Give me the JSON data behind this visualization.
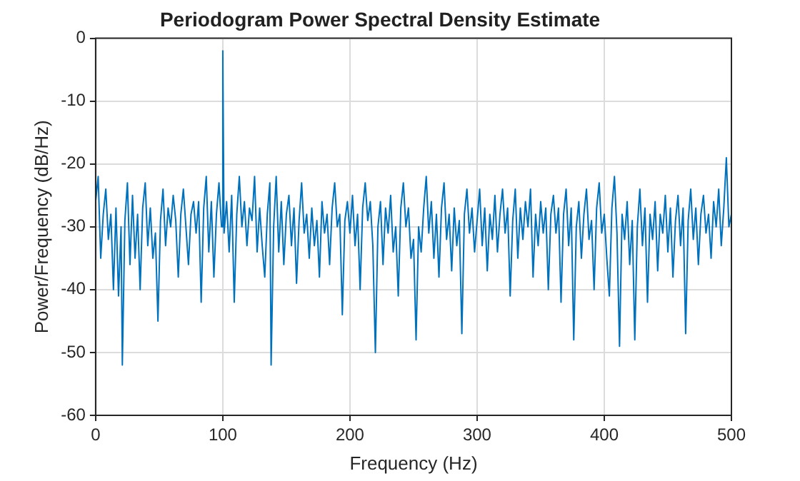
{
  "chart_data": {
    "type": "line",
    "title": "Periodogram Power Spectral Density Estimate",
    "xlabel": "Frequency (Hz)",
    "ylabel": "Power/Frequency (dB/Hz)",
    "xlim": [
      0,
      500
    ],
    "xticks": [
      0,
      100,
      200,
      300,
      400,
      500
    ],
    "ylim": [
      -60,
      0
    ],
    "yticks": [
      -60,
      -50,
      -40,
      -30,
      -20,
      -10,
      0
    ],
    "grid": true,
    "legend": false,
    "marker": "none",
    "line_style": "solid",
    "series": [
      {
        "color": "#0072bd",
        "x": [
          0,
          2,
          4,
          6,
          8,
          10,
          12,
          14,
          16,
          18,
          20,
          21,
          23,
          25,
          27,
          29,
          31,
          33,
          35,
          37,
          39,
          41,
          43,
          45,
          47,
          49,
          51,
          53,
          55,
          57,
          59,
          61,
          63,
          65,
          67,
          69,
          71,
          73,
          75,
          77,
          79,
          81,
          83,
          85,
          87,
          89,
          91,
          93,
          95,
          97,
          99,
          100,
          101,
          103,
          105,
          107,
          109,
          111,
          113,
          115,
          117,
          119,
          121,
          123,
          125,
          127,
          129,
          131,
          133,
          135,
          137,
          138,
          140,
          142,
          144,
          146,
          148,
          150,
          152,
          154,
          156,
          158,
          160,
          162,
          164,
          166,
          168,
          170,
          172,
          174,
          176,
          178,
          180,
          182,
          184,
          186,
          188,
          190,
          192,
          194,
          196,
          198,
          200,
          202,
          204,
          206,
          208,
          210,
          212,
          214,
          216,
          218,
          220,
          222,
          224,
          226,
          228,
          230,
          232,
          234,
          236,
          238,
          240,
          242,
          244,
          246,
          248,
          250,
          252,
          254,
          256,
          258,
          260,
          262,
          264,
          266,
          268,
          270,
          272,
          274,
          276,
          278,
          280,
          282,
          284,
          286,
          288,
          290,
          292,
          294,
          296,
          298,
          300,
          302,
          304,
          306,
          308,
          310,
          312,
          314,
          316,
          318,
          320,
          322,
          324,
          326,
          328,
          330,
          332,
          334,
          336,
          338,
          340,
          342,
          344,
          346,
          348,
          350,
          352,
          354,
          356,
          358,
          360,
          362,
          364,
          366,
          368,
          370,
          372,
          374,
          376,
          378,
          380,
          382,
          384,
          386,
          388,
          390,
          392,
          394,
          396,
          398,
          400,
          402,
          404,
          406,
          408,
          410,
          412,
          414,
          416,
          418,
          420,
          422,
          424,
          426,
          428,
          430,
          432,
          434,
          436,
          438,
          440,
          442,
          444,
          446,
          448,
          450,
          452,
          454,
          456,
          458,
          460,
          462,
          464,
          466,
          468,
          470,
          472,
          474,
          476,
          478,
          480,
          482,
          484,
          486,
          488,
          490,
          492,
          494,
          496,
          498,
          500
        ],
        "values": [
          -26,
          -22,
          -35,
          -28,
          -24,
          -32,
          -28,
          -40,
          -27,
          -41,
          -30,
          -52,
          -29,
          -23,
          -36,
          -25,
          -35,
          -28,
          -40,
          -27,
          -23,
          -33,
          -27,
          -35,
          -31,
          -45,
          -29,
          -24,
          -33,
          -27,
          -30,
          -25,
          -29,
          -38,
          -28,
          -24,
          -30,
          -36,
          -28,
          -26,
          -31,
          -26,
          -42,
          -27,
          -22,
          -34,
          -26,
          -38,
          -28,
          -23,
          -30,
          -2,
          -31,
          -26,
          -34,
          -25,
          -42,
          -28,
          -22,
          -30,
          -26,
          -33,
          -27,
          -29,
          -22,
          -34,
          -27,
          -33,
          -38,
          -28,
          -23,
          -52,
          -30,
          -22,
          -34,
          -26,
          -36,
          -28,
          -25,
          -33,
          -27,
          -39,
          -29,
          -23,
          -31,
          -28,
          -35,
          -27,
          -33,
          -29,
          -38,
          -26,
          -31,
          -28,
          -36,
          -27,
          -23,
          -30,
          -28,
          -44,
          -29,
          -26,
          -31,
          -25,
          -33,
          -28,
          -40,
          -27,
          -23,
          -29,
          -26,
          -33,
          -50,
          -30,
          -26,
          -36,
          -27,
          -31,
          -25,
          -34,
          -30,
          -41,
          -27,
          -23,
          -30,
          -27,
          -35,
          -32,
          -48,
          -30,
          -34,
          -27,
          -22,
          -31,
          -26,
          -35,
          -28,
          -38,
          -27,
          -23,
          -32,
          -28,
          -37,
          -27,
          -33,
          -29,
          -47,
          -28,
          -24,
          -31,
          -27,
          -34,
          -29,
          -24,
          -33,
          -27,
          -37,
          -28,
          -32,
          -25,
          -34,
          -28,
          -24,
          -31,
          -27,
          -41,
          -29,
          -24,
          -35,
          -27,
          -32,
          -26,
          -30,
          -24,
          -38,
          -28,
          -33,
          -26,
          -31,
          -27,
          -40,
          -28,
          -25,
          -31,
          -27,
          -42,
          -28,
          -24,
          -33,
          -27,
          -48,
          -30,
          -26,
          -35,
          -28,
          -24,
          -32,
          -29,
          -40,
          -27,
          -23,
          -31,
          -28,
          -35,
          -41,
          -27,
          -22,
          -31,
          -49,
          -28,
          -32,
          -26,
          -36,
          -29,
          -48,
          -30,
          -24,
          -33,
          -27,
          -42,
          -28,
          -32,
          -26,
          -37,
          -28,
          -31,
          -25,
          -34,
          -27,
          -38,
          -29,
          -25,
          -33,
          -27,
          -47,
          -29,
          -24,
          -32,
          -27,
          -36,
          -28,
          -25,
          -31,
          -28,
          -35,
          -26,
          -30,
          -24,
          -33,
          -27,
          -19,
          -30,
          -28
        ]
      }
    ]
  }
}
